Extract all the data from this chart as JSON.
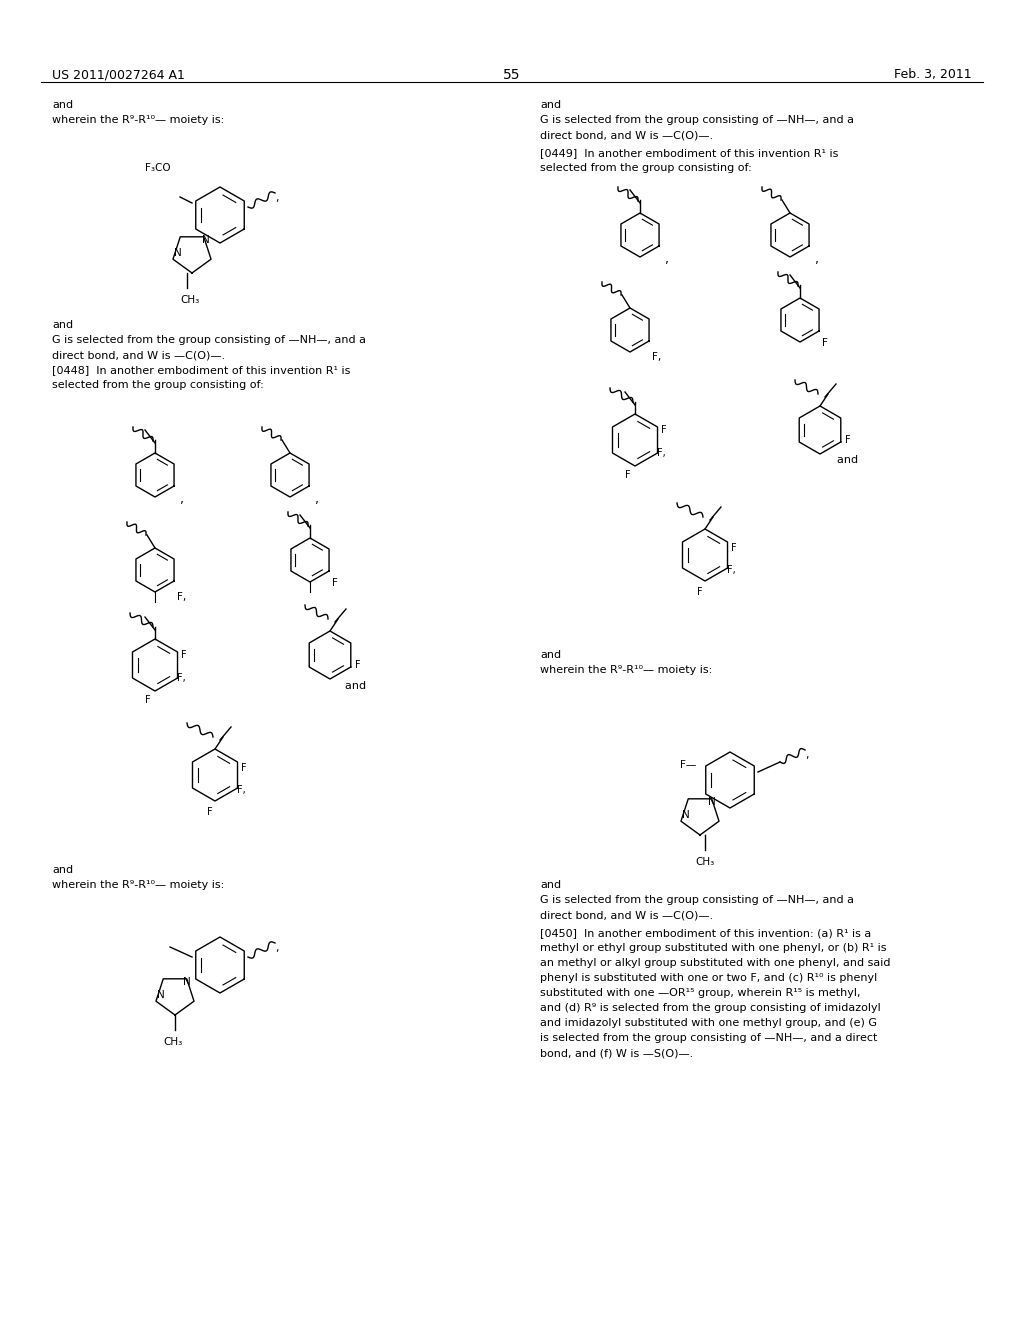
{
  "page_number": "55",
  "patent_number": "US 2011/0027264 A1",
  "patent_date": "Feb. 3, 2011",
  "background_color": "#ffffff",
  "text_color": "#000000",
  "font_size_header": 9,
  "font_size_body": 8,
  "font_size_page": 10
}
